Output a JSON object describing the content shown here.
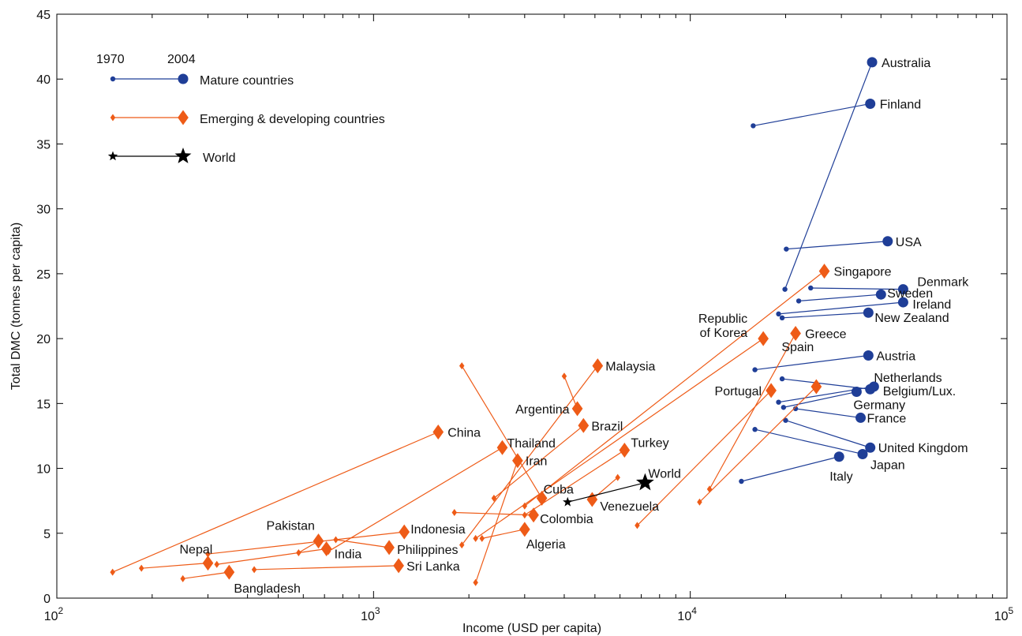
{
  "chart_data": {
    "type": "scatter",
    "xlabel": "Income (USD per capita)",
    "ylabel": "Total DMC (tonnes per capita)",
    "xscale": "log",
    "xlim": [
      100,
      100000
    ],
    "ylim": [
      0,
      45
    ],
    "x_ticks": [
      {
        "value": 100,
        "base": "10",
        "exp": "2"
      },
      {
        "value": 1000,
        "base": "10",
        "exp": "3"
      },
      {
        "value": 10000,
        "base": "10",
        "exp": "4"
      },
      {
        "value": 100000,
        "base": "10",
        "exp": "5"
      }
    ],
    "y_ticks": [
      0,
      5,
      10,
      15,
      20,
      25,
      30,
      35,
      40,
      45
    ],
    "legend": {
      "position": "top-left",
      "year_start": "1970",
      "year_end": "2004",
      "entries": [
        {
          "name": "Mature countries",
          "group": "mature"
        },
        {
          "name": "Emerging & developing countries",
          "group": "emerging"
        },
        {
          "name": "World",
          "group": "world"
        }
      ]
    },
    "colors": {
      "mature": "#1f3e97",
      "emerging": "#ee5b17",
      "world": "#000000"
    },
    "countries": [
      {
        "name": "Australia",
        "group": "mature",
        "x1970": 19900,
        "y1970": 23.8,
        "x2004": 37500,
        "y2004": 41.3
      },
      {
        "name": "Finland",
        "group": "mature",
        "x1970": 15800,
        "y1970": 36.4,
        "x2004": 37000,
        "y2004": 38.1
      },
      {
        "name": "USA",
        "group": "mature",
        "x1970": 20100,
        "y1970": 26.9,
        "x2004": 42000,
        "y2004": 27.5
      },
      {
        "name": "Denmark",
        "group": "mature",
        "x1970": 24000,
        "y1970": 23.9,
        "x2004": 47000,
        "y2004": 23.8
      },
      {
        "name": "Sweden",
        "group": "mature",
        "x1970": 22000,
        "y1970": 22.9,
        "x2004": 40000,
        "y2004": 23.4
      },
      {
        "name": "Ireland",
        "group": "mature",
        "x1970": 19000,
        "y1970": 21.9,
        "x2004": 47000,
        "y2004": 22.8
      },
      {
        "name": "New Zealand",
        "group": "mature",
        "x1970": 19500,
        "y1970": 21.6,
        "x2004": 36500,
        "y2004": 22.0
      },
      {
        "name": "Austria",
        "group": "mature",
        "x1970": 16000,
        "y1970": 17.6,
        "x2004": 36500,
        "y2004": 18.7
      },
      {
        "name": "Netherlands",
        "group": "mature",
        "x1970": 19000,
        "y1970": 15.1,
        "x2004": 38000,
        "y2004": 16.3
      },
      {
        "name": "Belgium/Lux.",
        "group": "mature",
        "x1970": 19500,
        "y1970": 16.9,
        "x2004": 37000,
        "y2004": 16.1
      },
      {
        "name": "Germany",
        "group": "mature",
        "x1970": 19700,
        "y1970": 14.7,
        "x2004": 33500,
        "y2004": 15.9
      },
      {
        "name": "France",
        "group": "mature",
        "x1970": 21500,
        "y1970": 14.6,
        "x2004": 34500,
        "y2004": 13.9
      },
      {
        "name": "United Kingdom",
        "group": "mature",
        "x1970": 20000,
        "y1970": 13.7,
        "x2004": 37000,
        "y2004": 11.6
      },
      {
        "name": "Japan",
        "group": "mature",
        "x1970": 16000,
        "y1970": 13.0,
        "x2004": 35000,
        "y2004": 11.1
      },
      {
        "name": "Italy",
        "group": "mature",
        "x1970": 14500,
        "y1970": 9.0,
        "x2004": 29500,
        "y2004": 10.9
      },
      {
        "name": "Singapore",
        "group": "emerging",
        "x1970": 3000,
        "y1970": 7.1,
        "x2004": 26500,
        "y2004": 25.2
      },
      {
        "name": "Greece",
        "group": "emerging",
        "x1970": 11500,
        "y1970": 8.4,
        "x2004": 21500,
        "y2004": 20.4
      },
      {
        "name": "Republic of Korea",
        "group": "emerging",
        "x1970": 2100,
        "y1970": 4.6,
        "x2004": 17000,
        "y2004": 20.0
      },
      {
        "name": "Spain",
        "group": "emerging",
        "x1970": 10700,
        "y1970": 7.4,
        "x2004": 25000,
        "y2004": 16.3
      },
      {
        "name": "Portugal",
        "group": "emerging",
        "x1970": 6800,
        "y1970": 5.6,
        "x2004": 18000,
        "y2004": 16.0
      },
      {
        "name": "Malaysia",
        "group": "emerging",
        "x1970": 1900,
        "y1970": 4.1,
        "x2004": 5100,
        "y2004": 17.9
      },
      {
        "name": "Argentina",
        "group": "emerging",
        "x1970": 4000,
        "y1970": 17.1,
        "x2004": 4400,
        "y2004": 14.6
      },
      {
        "name": "Brazil",
        "group": "emerging",
        "x1970": 2400,
        "y1970": 7.7,
        "x2004": 4600,
        "y2004": 13.3
      },
      {
        "name": "China",
        "group": "emerging",
        "x1970": 150,
        "y1970": 2.0,
        "x2004": 1600,
        "y2004": 12.8
      },
      {
        "name": "Thailand",
        "group": "emerging",
        "x1970": 720,
        "y1970": 3.6,
        "x2004": 2550,
        "y2004": 11.6
      },
      {
        "name": "Iran",
        "group": "emerging",
        "x1970": 2100,
        "y1970": 1.2,
        "x2004": 2850,
        "y2004": 10.6
      },
      {
        "name": "Turkey",
        "group": "emerging",
        "x1970": 3000,
        "y1970": 6.4,
        "x2004": 6200,
        "y2004": 11.4
      },
      {
        "name": "Cuba",
        "group": "emerging",
        "x1970": 1900,
        "y1970": 17.9,
        "x2004": 3400,
        "y2004": 7.7
      },
      {
        "name": "Venezuela",
        "group": "emerging",
        "x1970": 5900,
        "y1970": 9.3,
        "x2004": 4900,
        "y2004": 7.6
      },
      {
        "name": "Colombia",
        "group": "emerging",
        "x1970": 1800,
        "y1970": 6.6,
        "x2004": 3200,
        "y2004": 6.4
      },
      {
        "name": "Algeria",
        "group": "emerging",
        "x1970": 2200,
        "y1970": 4.6,
        "x2004": 3000,
        "y2004": 5.3
      },
      {
        "name": "Indonesia",
        "group": "emerging",
        "x1970": 300,
        "y1970": 3.4,
        "x2004": 1250,
        "y2004": 5.1
      },
      {
        "name": "Pakistan",
        "group": "emerging",
        "x1970": 580,
        "y1970": 3.5,
        "x2004": 670,
        "y2004": 4.4
      },
      {
        "name": "Philippines",
        "group": "emerging",
        "x1970": 760,
        "y1970": 4.5,
        "x2004": 1120,
        "y2004": 3.9
      },
      {
        "name": "India",
        "group": "emerging",
        "x1970": 320,
        "y1970": 2.6,
        "x2004": 710,
        "y2004": 3.8
      },
      {
        "name": "Nepal",
        "group": "emerging",
        "x1970": 185,
        "y1970": 2.3,
        "x2004": 300,
        "y2004": 2.7
      },
      {
        "name": "Bangladesh",
        "group": "emerging",
        "x1970": 250,
        "y1970": 1.5,
        "x2004": 350,
        "y2004": 2.0
      },
      {
        "name": "Sri Lanka",
        "group": "emerging",
        "x1970": 420,
        "y1970": 2.2,
        "x2004": 1200,
        "y2004": 2.5
      },
      {
        "name": "World",
        "group": "world",
        "x1970": 4100,
        "y1970": 7.4,
        "x2004": 7200,
        "y2004": 8.9
      }
    ]
  }
}
